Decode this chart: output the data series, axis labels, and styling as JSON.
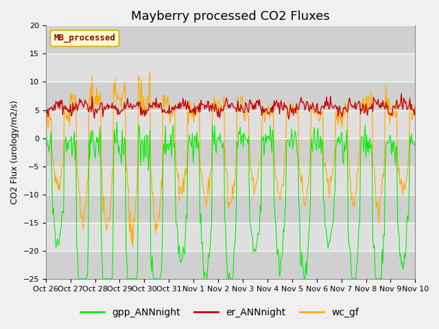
{
  "title": "Mayberry processed CO2 Fluxes",
  "ylabel": "CO2 Flux (urology/m2/s)",
  "ylim": [
    -25,
    20
  ],
  "yticks": [
    -25,
    -20,
    -15,
    -10,
    -5,
    0,
    5,
    10,
    15,
    20
  ],
  "xtick_labels": [
    "Oct 26",
    "Oct 27",
    "Oct 28",
    "Oct 29",
    "Oct 30",
    "Oct 31",
    "Nov 1",
    "Nov 2",
    "Nov 3",
    "Nov 4",
    "Nov 5",
    "Nov 6",
    "Nov 7",
    "Nov 8",
    "Nov 9",
    "Nov 10"
  ],
  "bg_color": "#e8e8e8",
  "plot_bg": "#ebebeb",
  "gpp_color": "#00ee00",
  "er_color": "#cc0000",
  "wc_color": "#ffaa00",
  "legend_label": "MB_processed",
  "legend_box_color": "#ffffcc",
  "legend_box_edge": "#ccaa00",
  "legend_text_color": "#990000",
  "title_fontsize": 13,
  "label_fontsize": 9,
  "tick_fontsize": 8,
  "n_points": 480,
  "days": 15
}
